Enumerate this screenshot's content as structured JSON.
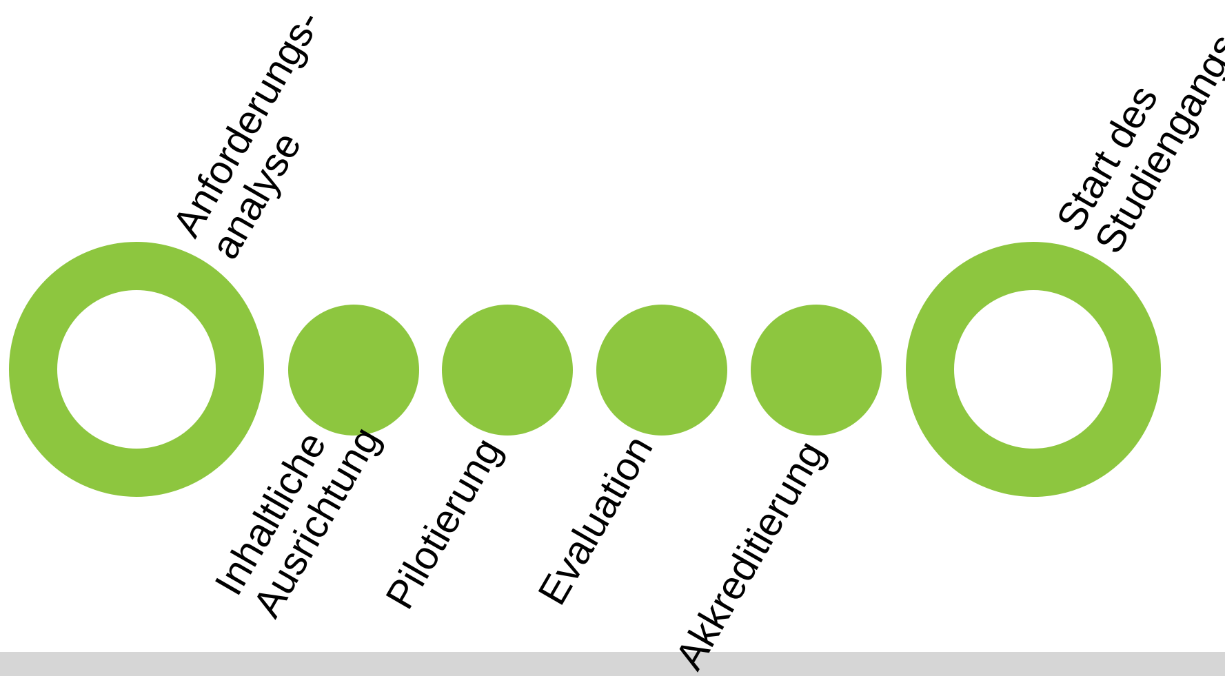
{
  "colors": {
    "accent": "#8dc63f",
    "background": "#ffffff",
    "bar": "#d6d6d6",
    "text": "#000000"
  },
  "milestones": [
    {
      "kind": "ring",
      "lines": [
        "Anforderungs-",
        "analyse"
      ]
    },
    {
      "kind": "dot",
      "lines": [
        "Inhaltliche",
        "Ausrichtung"
      ]
    },
    {
      "kind": "dot",
      "lines": [
        "Pilotierung"
      ]
    },
    {
      "kind": "dot",
      "lines": [
        "Evaluation"
      ]
    },
    {
      "kind": "dot",
      "lines": [
        "Akkreditierung"
      ]
    },
    {
      "kind": "ring",
      "lines": [
        "Start des",
        "Studiengangs"
      ]
    }
  ]
}
